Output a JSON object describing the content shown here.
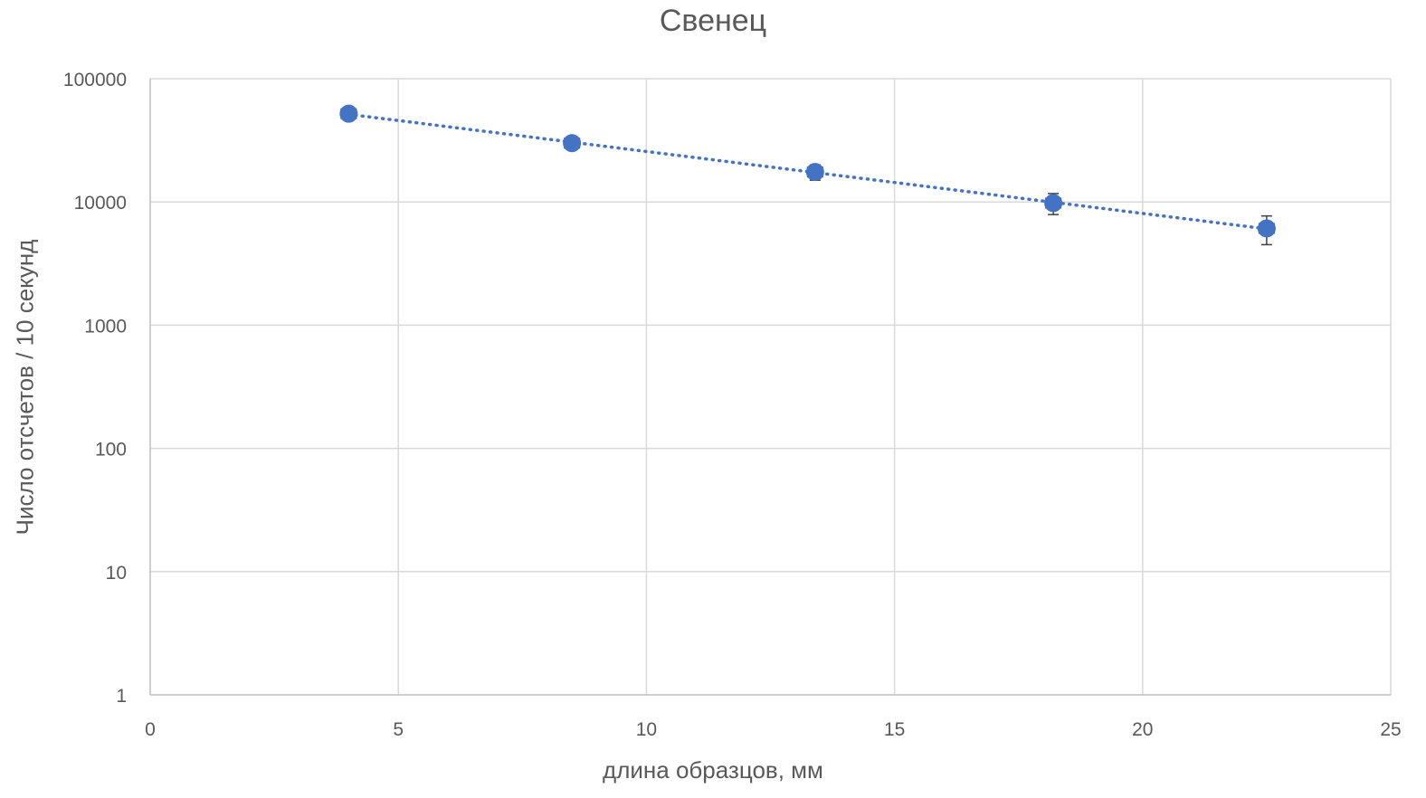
{
  "chart_data": {
    "type": "scatter",
    "title": "Свенец",
    "xlabel": "длина образцов, мм",
    "ylabel": "Число отсчетов / 10 секунд",
    "x_scale": "linear",
    "y_scale": "log",
    "xlim": [
      0,
      25
    ],
    "ylim": [
      1,
      100000
    ],
    "x_ticks": [
      0,
      5,
      10,
      15,
      20,
      25
    ],
    "y_ticks": [
      1,
      10,
      100,
      1000,
      10000,
      100000
    ],
    "x_tick_labels": [
      "0",
      "5",
      "10",
      "15",
      "20",
      "25"
    ],
    "y_tick_labels": [
      "1",
      "10",
      "100",
      "1000",
      "10000",
      "100000"
    ],
    "grid": true,
    "marker_color": "#4472C4",
    "trendline": {
      "type": "exponential",
      "style": "dotted",
      "color": "#4472C4"
    },
    "series": [
      {
        "x": [
          4.0,
          8.5,
          13.4,
          18.2,
          22.5
        ],
        "y": [
          52000,
          30000,
          17500,
          9800,
          6100
        ],
        "y_err": [
          2300,
          1800,
          2500,
          1900,
          1600
        ],
        "x_err": [
          0.15,
          0.15,
          0.15,
          0.15,
          0.15
        ]
      }
    ]
  }
}
